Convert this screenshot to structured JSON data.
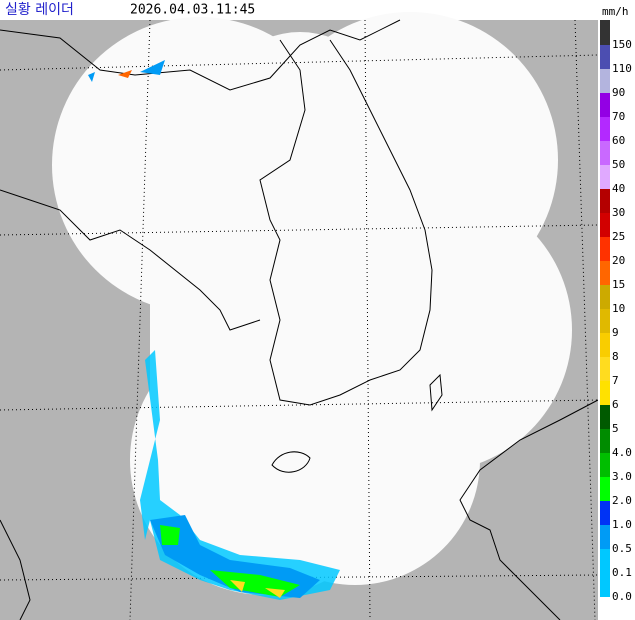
{
  "header": {
    "title": "실황 레이더",
    "timestamp": "2026.04.03.11:45",
    "unit": "mm/h"
  },
  "legend": {
    "above_color": "#333333",
    "items": [
      {
        "label": "150",
        "color": "#000390"
      },
      {
        "label": "110",
        "color": "#4c4eb1"
      },
      {
        "label": "90",
        "color": "#b3b4de"
      },
      {
        "label": "70",
        "color": "#9300e4"
      },
      {
        "label": "60",
        "color": "#b329ff"
      },
      {
        "label": "50",
        "color": "#c969ff"
      },
      {
        "label": "40",
        "color": "#e0a9ff"
      },
      {
        "label": "30",
        "color": "#b40000"
      },
      {
        "label": "25",
        "color": "#d20000"
      },
      {
        "label": "20",
        "color": "#ff3200"
      },
      {
        "label": "15",
        "color": "#ff6600"
      },
      {
        "label": "10",
        "color": "#ccaa00"
      },
      {
        "label": "9",
        "color": "#e0b900"
      },
      {
        "label": "8",
        "color": "#f9cd00"
      },
      {
        "label": "7",
        "color": "#ffdc1f"
      },
      {
        "label": "6",
        "color": "#ffe100"
      },
      {
        "label": "5",
        "color": "#005a00"
      },
      {
        "label": "4.0",
        "color": "#008c00"
      },
      {
        "label": "3.0",
        "color": "#00be00"
      },
      {
        "label": "2.0",
        "color": "#00ff00"
      },
      {
        "label": "1.0",
        "color": "#0033f5"
      },
      {
        "label": "0.5",
        "color": "#009bf5"
      },
      {
        "label": "0.1",
        "color": "#00c8ff"
      },
      {
        "label": "0.0",
        "color": "#00c8ff"
      }
    ]
  }
}
